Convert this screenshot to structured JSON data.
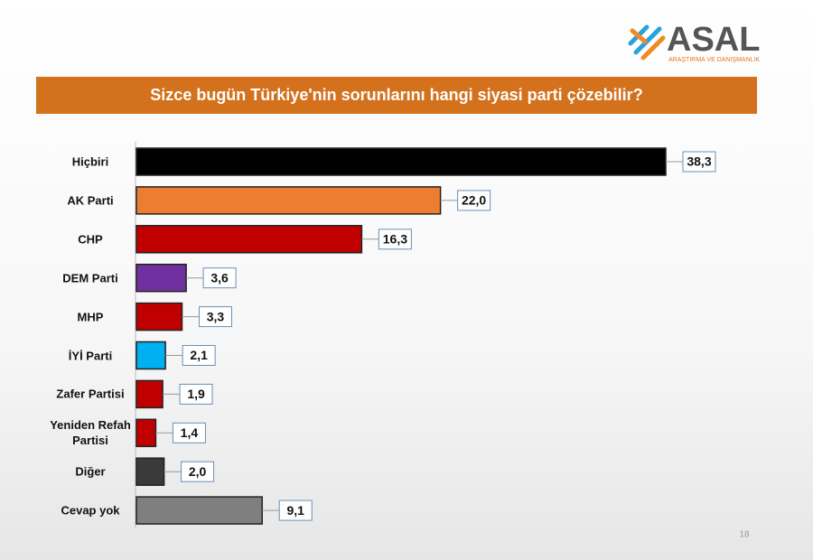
{
  "logo": {
    "name": "ASAL",
    "tagline": "ARAŞTIRMA VE DANIŞMANLIK"
  },
  "page_number": 18,
  "chart_data": {
    "type": "bar",
    "orientation": "horizontal",
    "title": "Sizce bugün Türkiye'nin sorunlarını hangi siyasi parti çözebilir?",
    "categories": [
      "Hiçbiri",
      "AK Parti",
      "CHP",
      "DEM Parti",
      "MHP",
      "İYİ Parti",
      "Zafer Partisi",
      "Yeniden Refah Partisi",
      "Diğer",
      "Cevap yok"
    ],
    "values": [
      38.3,
      22.0,
      16.3,
      3.6,
      3.3,
      2.1,
      1.9,
      1.4,
      2.0,
      9.1
    ],
    "value_labels": [
      "38,3",
      "22,0",
      "16,3",
      "3,6",
      "3,3",
      "2,1",
      "1,9",
      "1,4",
      "2,0",
      "9,1"
    ],
    "colors": [
      "#000000",
      "#ed7d31",
      "#c00000",
      "#7030a0",
      "#c00000",
      "#00b0f0",
      "#c00000",
      "#c00000",
      "#3a3a3a",
      "#7f7f7f"
    ]
  }
}
